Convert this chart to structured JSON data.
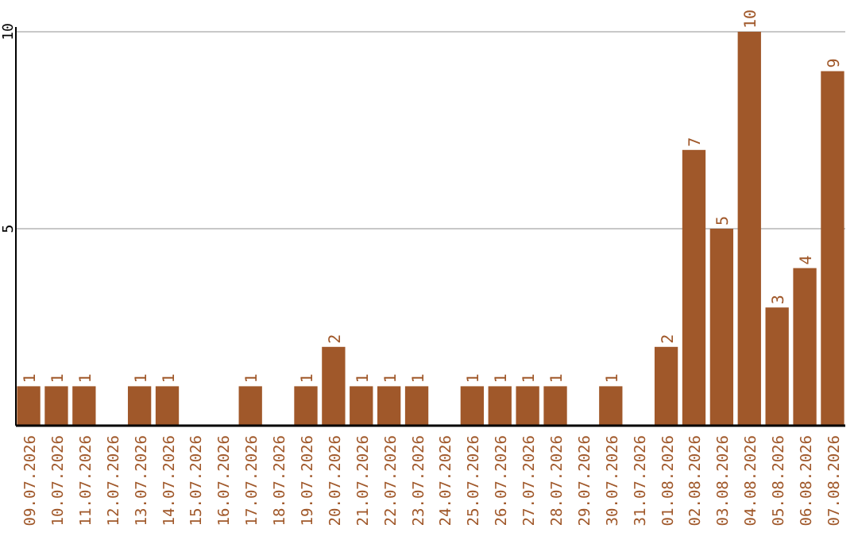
{
  "chart_data": {
    "type": "bar",
    "categories": [
      "09.07.2026",
      "10.07.2026",
      "11.07.2026",
      "12.07.2026",
      "13.07.2026",
      "14.07.2026",
      "15.07.2026",
      "16.07.2026",
      "17.07.2026",
      "18.07.2026",
      "19.07.2026",
      "20.07.2026",
      "21.07.2026",
      "22.07.2026",
      "23.07.2026",
      "24.07.2026",
      "25.07.2026",
      "26.07.2026",
      "27.07.2026",
      "28.07.2026",
      "29.07.2026",
      "30.07.2026",
      "31.07.2026",
      "01.08.2026",
      "02.08.2026",
      "03.08.2026",
      "04.08.2026",
      "05.08.2026",
      "06.08.2026",
      "07.08.2026"
    ],
    "values": [
      1,
      1,
      1,
      0,
      1,
      1,
      0,
      0,
      1,
      0,
      1,
      2,
      1,
      1,
      1,
      0,
      1,
      1,
      1,
      1,
      0,
      1,
      0,
      2,
      7,
      5,
      10,
      3,
      4,
      9
    ],
    "value_labels": [
      "1",
      "1",
      "1",
      null,
      "1",
      "1",
      null,
      null,
      "1",
      null,
      "1",
      "2",
      "1",
      "1",
      "1",
      null,
      "1",
      "1",
      "1",
      "1",
      null,
      "1",
      null,
      "2",
      "7",
      "5",
      "10",
      "3",
      "4",
      "9"
    ],
    "color": "#a0582a",
    "ylim": [
      0,
      10
    ],
    "yticks": [
      5,
      10
    ],
    "grid": "y"
  }
}
